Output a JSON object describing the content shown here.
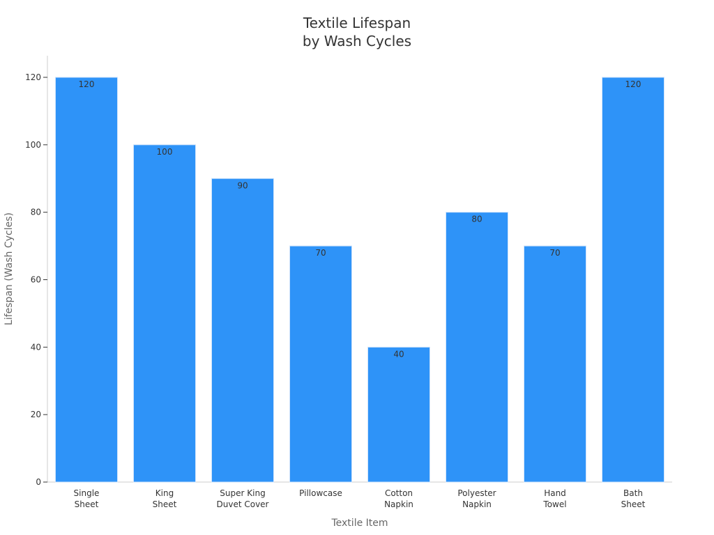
{
  "chart_data": {
    "type": "bar",
    "title_lines": [
      "Textile Lifespan",
      "by Wash Cycles"
    ],
    "xlabel": "Textile Item",
    "ylabel": "Lifespan (Wash Cycles)",
    "categories": [
      [
        "Single",
        "Sheet"
      ],
      [
        "King",
        "Sheet"
      ],
      [
        "Super King",
        "Duvet Cover"
      ],
      [
        "Pillowcase"
      ],
      [
        "Cotton",
        "Napkin"
      ],
      [
        "Polyester",
        "Napkin"
      ],
      [
        "Hand",
        "Towel"
      ],
      [
        "Bath",
        "Sheet"
      ]
    ],
    "values": [
      120,
      100,
      90,
      70,
      40,
      80,
      70,
      120
    ],
    "ylim": [
      0,
      120
    ],
    "yticks": [
      0,
      20,
      40,
      60,
      80,
      100,
      120
    ],
    "bar_color": "#2e93f8",
    "grid": false,
    "legend": "none"
  }
}
